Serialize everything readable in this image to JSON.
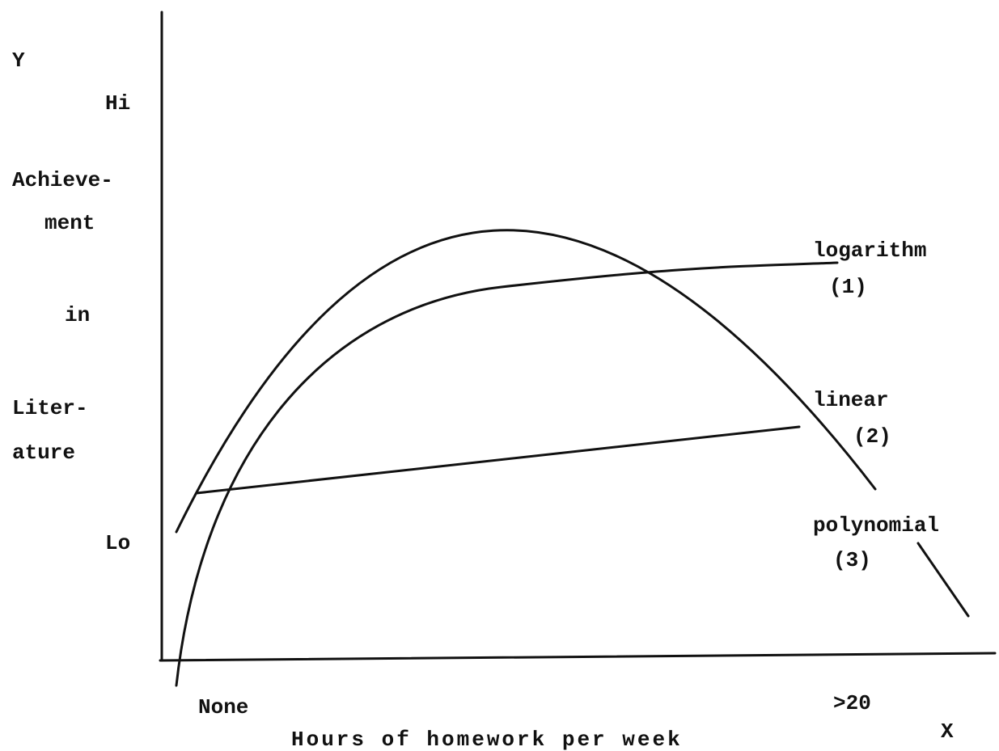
{
  "axes": {
    "y_label": "Y",
    "y_high": "Hi",
    "y_title": [
      "Achieve-",
      "ment",
      "in",
      "Liter-",
      "ature"
    ],
    "y_low": "Lo",
    "x_start": "None",
    "x_end": ">20",
    "x_title": "Hours of homework per week",
    "x_label": "X"
  },
  "curves": [
    {
      "name": "logarithm",
      "number": "(1)"
    },
    {
      "name": "linear",
      "number": "(2)"
    },
    {
      "name": "polynomial",
      "number": "(3)"
    }
  ]
}
